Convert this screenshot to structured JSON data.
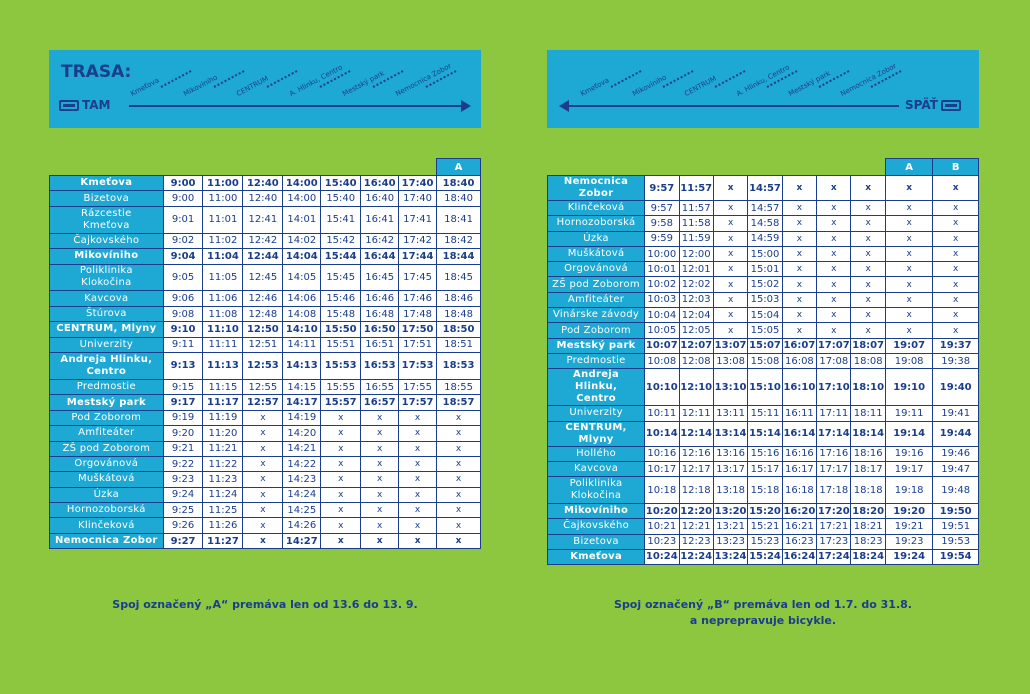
{
  "left": {
    "route_title": "TRASA:",
    "direction": "TAM",
    "route_stops": [
      "Kmeťova",
      "Mikovíniho",
      "CENTRUM",
      "A. Hlinku, Centro",
      "Mestský park",
      "Nemocnica Zobor"
    ],
    "header_flag": "A",
    "rows": [
      {
        "stop": "Kmeťova",
        "bold": true,
        "times": [
          "9:00",
          "11:00",
          "12:40",
          "14:00",
          "15:40",
          "16:40",
          "17:40",
          "18:40"
        ]
      },
      {
        "stop": "Bizetova",
        "bold": false,
        "times": [
          "9:00",
          "11:00",
          "12:40",
          "14:00",
          "15:40",
          "16:40",
          "17:40",
          "18:40"
        ]
      },
      {
        "stop": "Rázcestie Kmeťova",
        "bold": false,
        "times": [
          "9:01",
          "11:01",
          "12:41",
          "14:01",
          "15:41",
          "16:41",
          "17:41",
          "18:41"
        ]
      },
      {
        "stop": "Čajkovského",
        "bold": false,
        "times": [
          "9:02",
          "11:02",
          "12:42",
          "14:02",
          "15:42",
          "16:42",
          "17:42",
          "18:42"
        ]
      },
      {
        "stop": "Mikovíniho",
        "bold": true,
        "times": [
          "9:04",
          "11:04",
          "12:44",
          "14:04",
          "15:44",
          "16:44",
          "17:44",
          "18:44"
        ]
      },
      {
        "stop": "Poliklinika Klokočina",
        "bold": false,
        "times": [
          "9:05",
          "11:05",
          "12:45",
          "14:05",
          "15:45",
          "16:45",
          "17:45",
          "18:45"
        ]
      },
      {
        "stop": "Kavcova",
        "bold": false,
        "times": [
          "9:06",
          "11:06",
          "12:46",
          "14:06",
          "15:46",
          "16:46",
          "17:46",
          "18:46"
        ]
      },
      {
        "stop": "Štúrova",
        "bold": false,
        "times": [
          "9:08",
          "11:08",
          "12:48",
          "14:08",
          "15:48",
          "16:48",
          "17:48",
          "18:48"
        ]
      },
      {
        "stop": "CENTRUM, Mlyny",
        "bold": true,
        "times": [
          "9:10",
          "11:10",
          "12:50",
          "14:10",
          "15:50",
          "16:50",
          "17:50",
          "18:50"
        ]
      },
      {
        "stop": "Univerzity",
        "bold": false,
        "times": [
          "9:11",
          "11:11",
          "12:51",
          "14:11",
          "15:51",
          "16:51",
          "17:51",
          "18:51"
        ]
      },
      {
        "stop": "Andreja Hlinku, Centro",
        "bold": true,
        "times": [
          "9:13",
          "11:13",
          "12:53",
          "14:13",
          "15:53",
          "16:53",
          "17:53",
          "18:53"
        ]
      },
      {
        "stop": "Predmostie",
        "bold": false,
        "times": [
          "9:15",
          "11:15",
          "12:55",
          "14:15",
          "15:55",
          "16:55",
          "17:55",
          "18:55"
        ]
      },
      {
        "stop": "Mestský park",
        "bold": true,
        "times": [
          "9:17",
          "11:17",
          "12:57",
          "14:17",
          "15:57",
          "16:57",
          "17:57",
          "18:57"
        ]
      },
      {
        "stop": "Pod Zoborom",
        "bold": false,
        "times": [
          "9:19",
          "11:19",
          "x",
          "14:19",
          "x",
          "x",
          "x",
          "x"
        ]
      },
      {
        "stop": "Amfiteáter",
        "bold": false,
        "times": [
          "9:20",
          "11:20",
          "x",
          "14:20",
          "x",
          "x",
          "x",
          "x"
        ]
      },
      {
        "stop": "ZŠ pod Zoborom",
        "bold": false,
        "times": [
          "9:21",
          "11:21",
          "x",
          "14:21",
          "x",
          "x",
          "x",
          "x"
        ]
      },
      {
        "stop": "Orgovánová",
        "bold": false,
        "times": [
          "9:22",
          "11:22",
          "x",
          "14:22",
          "x",
          "x",
          "x",
          "x"
        ]
      },
      {
        "stop": "Muškátová",
        "bold": false,
        "times": [
          "9:23",
          "11:23",
          "x",
          "14:23",
          "x",
          "x",
          "x",
          "x"
        ]
      },
      {
        "stop": "Úzka",
        "bold": false,
        "times": [
          "9:24",
          "11:24",
          "x",
          "14:24",
          "x",
          "x",
          "x",
          "x"
        ]
      },
      {
        "stop": "Hornozoborská",
        "bold": false,
        "times": [
          "9:25",
          "11:25",
          "x",
          "14:25",
          "x",
          "x",
          "x",
          "x"
        ]
      },
      {
        "stop": "Klinčeková",
        "bold": false,
        "times": [
          "9:26",
          "11:26",
          "x",
          "14:26",
          "x",
          "x",
          "x",
          "x"
        ]
      },
      {
        "stop": "Nemocnica Zobor",
        "bold": true,
        "times": [
          "9:27",
          "11:27",
          "x",
          "14:27",
          "x",
          "x",
          "x",
          "x"
        ]
      }
    ],
    "note": "Spoj označený „A“ premáva len od 13.6 do 13. 9."
  },
  "right": {
    "direction": "SPÄŤ",
    "route_stops": [
      "Kmeťova",
      "Mikovíniho",
      "CENTRUM",
      "A. Hlinku, Centro",
      "Mestský park",
      "Nemocnica Zobor"
    ],
    "header_flags": [
      "A",
      "B"
    ],
    "rows": [
      {
        "stop": "Nemocnica Zobor",
        "bold": true,
        "times": [
          "9:57",
          "11:57",
          "x",
          "14:57",
          "x",
          "x",
          "x",
          "x",
          "x"
        ]
      },
      {
        "stop": "Klinčeková",
        "bold": false,
        "times": [
          "9:57",
          "11:57",
          "x",
          "14:57",
          "x",
          "x",
          "x",
          "x",
          "x"
        ]
      },
      {
        "stop": "Hornozoborská",
        "bold": false,
        "times": [
          "9:58",
          "11:58",
          "x",
          "14:58",
          "x",
          "x",
          "x",
          "x",
          "x"
        ]
      },
      {
        "stop": "Úzka",
        "bold": false,
        "times": [
          "9:59",
          "11:59",
          "x",
          "14:59",
          "x",
          "x",
          "x",
          "x",
          "x"
        ]
      },
      {
        "stop": "Muškátová",
        "bold": false,
        "times": [
          "10:00",
          "12:00",
          "x",
          "15:00",
          "x",
          "x",
          "x",
          "x",
          "x"
        ]
      },
      {
        "stop": "Orgovánová",
        "bold": false,
        "times": [
          "10:01",
          "12:01",
          "x",
          "15:01",
          "x",
          "x",
          "x",
          "x",
          "x"
        ]
      },
      {
        "stop": "ZŠ pod Zoborom",
        "bold": false,
        "times": [
          "10:02",
          "12:02",
          "x",
          "15:02",
          "x",
          "x",
          "x",
          "x",
          "x"
        ]
      },
      {
        "stop": "Amfiteáter",
        "bold": false,
        "times": [
          "10:03",
          "12:03",
          "x",
          "15:03",
          "x",
          "x",
          "x",
          "x",
          "x"
        ]
      },
      {
        "stop": "Vinárske závody",
        "bold": false,
        "times": [
          "10:04",
          "12:04",
          "x",
          "15:04",
          "x",
          "x",
          "x",
          "x",
          "x"
        ]
      },
      {
        "stop": "Pod Zoborom",
        "bold": false,
        "times": [
          "10:05",
          "12:05",
          "x",
          "15:05",
          "x",
          "x",
          "x",
          "x",
          "x"
        ]
      },
      {
        "stop": "Mestský park",
        "bold": true,
        "times": [
          "10:07",
          "12:07",
          "13:07",
          "15:07",
          "16:07",
          "17:07",
          "18:07",
          "19:07",
          "19:37"
        ]
      },
      {
        "stop": "Predmostie",
        "bold": false,
        "times": [
          "10:08",
          "12:08",
          "13:08",
          "15:08",
          "16:08",
          "17:08",
          "18:08",
          "19:08",
          "19:38"
        ]
      },
      {
        "stop": "Andreja Hlinku, Centro",
        "bold": true,
        "times": [
          "10:10",
          "12:10",
          "13:10",
          "15:10",
          "16:10",
          "17:10",
          "18:10",
          "19:10",
          "19:40"
        ]
      },
      {
        "stop": "Univerzity",
        "bold": false,
        "times": [
          "10:11",
          "12:11",
          "13:11",
          "15:11",
          "16:11",
          "17:11",
          "18:11",
          "19:11",
          "19:41"
        ]
      },
      {
        "stop": "CENTRUM, Mlyny",
        "bold": true,
        "times": [
          "10:14",
          "12:14",
          "13:14",
          "15:14",
          "16:14",
          "17:14",
          "18:14",
          "19:14",
          "19:44"
        ]
      },
      {
        "stop": "Hollého",
        "bold": false,
        "times": [
          "10:16",
          "12:16",
          "13:16",
          "15:16",
          "16:16",
          "17:16",
          "18:16",
          "19:16",
          "19:46"
        ]
      },
      {
        "stop": "Kavcova",
        "bold": false,
        "times": [
          "10:17",
          "12:17",
          "13:17",
          "15:17",
          "16:17",
          "17:17",
          "18:17",
          "19:17",
          "19:47"
        ]
      },
      {
        "stop": "Poliklinika Klokočina",
        "bold": false,
        "times": [
          "10:18",
          "12:18",
          "13:18",
          "15:18",
          "16:18",
          "17:18",
          "18:18",
          "19:18",
          "19:48"
        ]
      },
      {
        "stop": "Mikovíniho",
        "bold": true,
        "times": [
          "10:20",
          "12:20",
          "13:20",
          "15:20",
          "16:20",
          "17:20",
          "18:20",
          "19:20",
          "19:50"
        ]
      },
      {
        "stop": "Čajkovského",
        "bold": false,
        "times": [
          "10:21",
          "12:21",
          "13:21",
          "15:21",
          "16:21",
          "17:21",
          "18:21",
          "19:21",
          "19:51"
        ]
      },
      {
        "stop": "Bizetova",
        "bold": false,
        "times": [
          "10:23",
          "12:23",
          "13:23",
          "15:23",
          "16:23",
          "17:23",
          "18:23",
          "19:23",
          "19:53"
        ]
      },
      {
        "stop": "Kmeťova",
        "bold": true,
        "times": [
          "10:24",
          "12:24",
          "13:24",
          "15:24",
          "16:24",
          "17:24",
          "18:24",
          "19:24",
          "19:54"
        ]
      }
    ],
    "note_line1": "Spoj označený „B“ premáva len od 1.7. do 31.8.",
    "note_line2": "a neprepravuje bicykle."
  }
}
